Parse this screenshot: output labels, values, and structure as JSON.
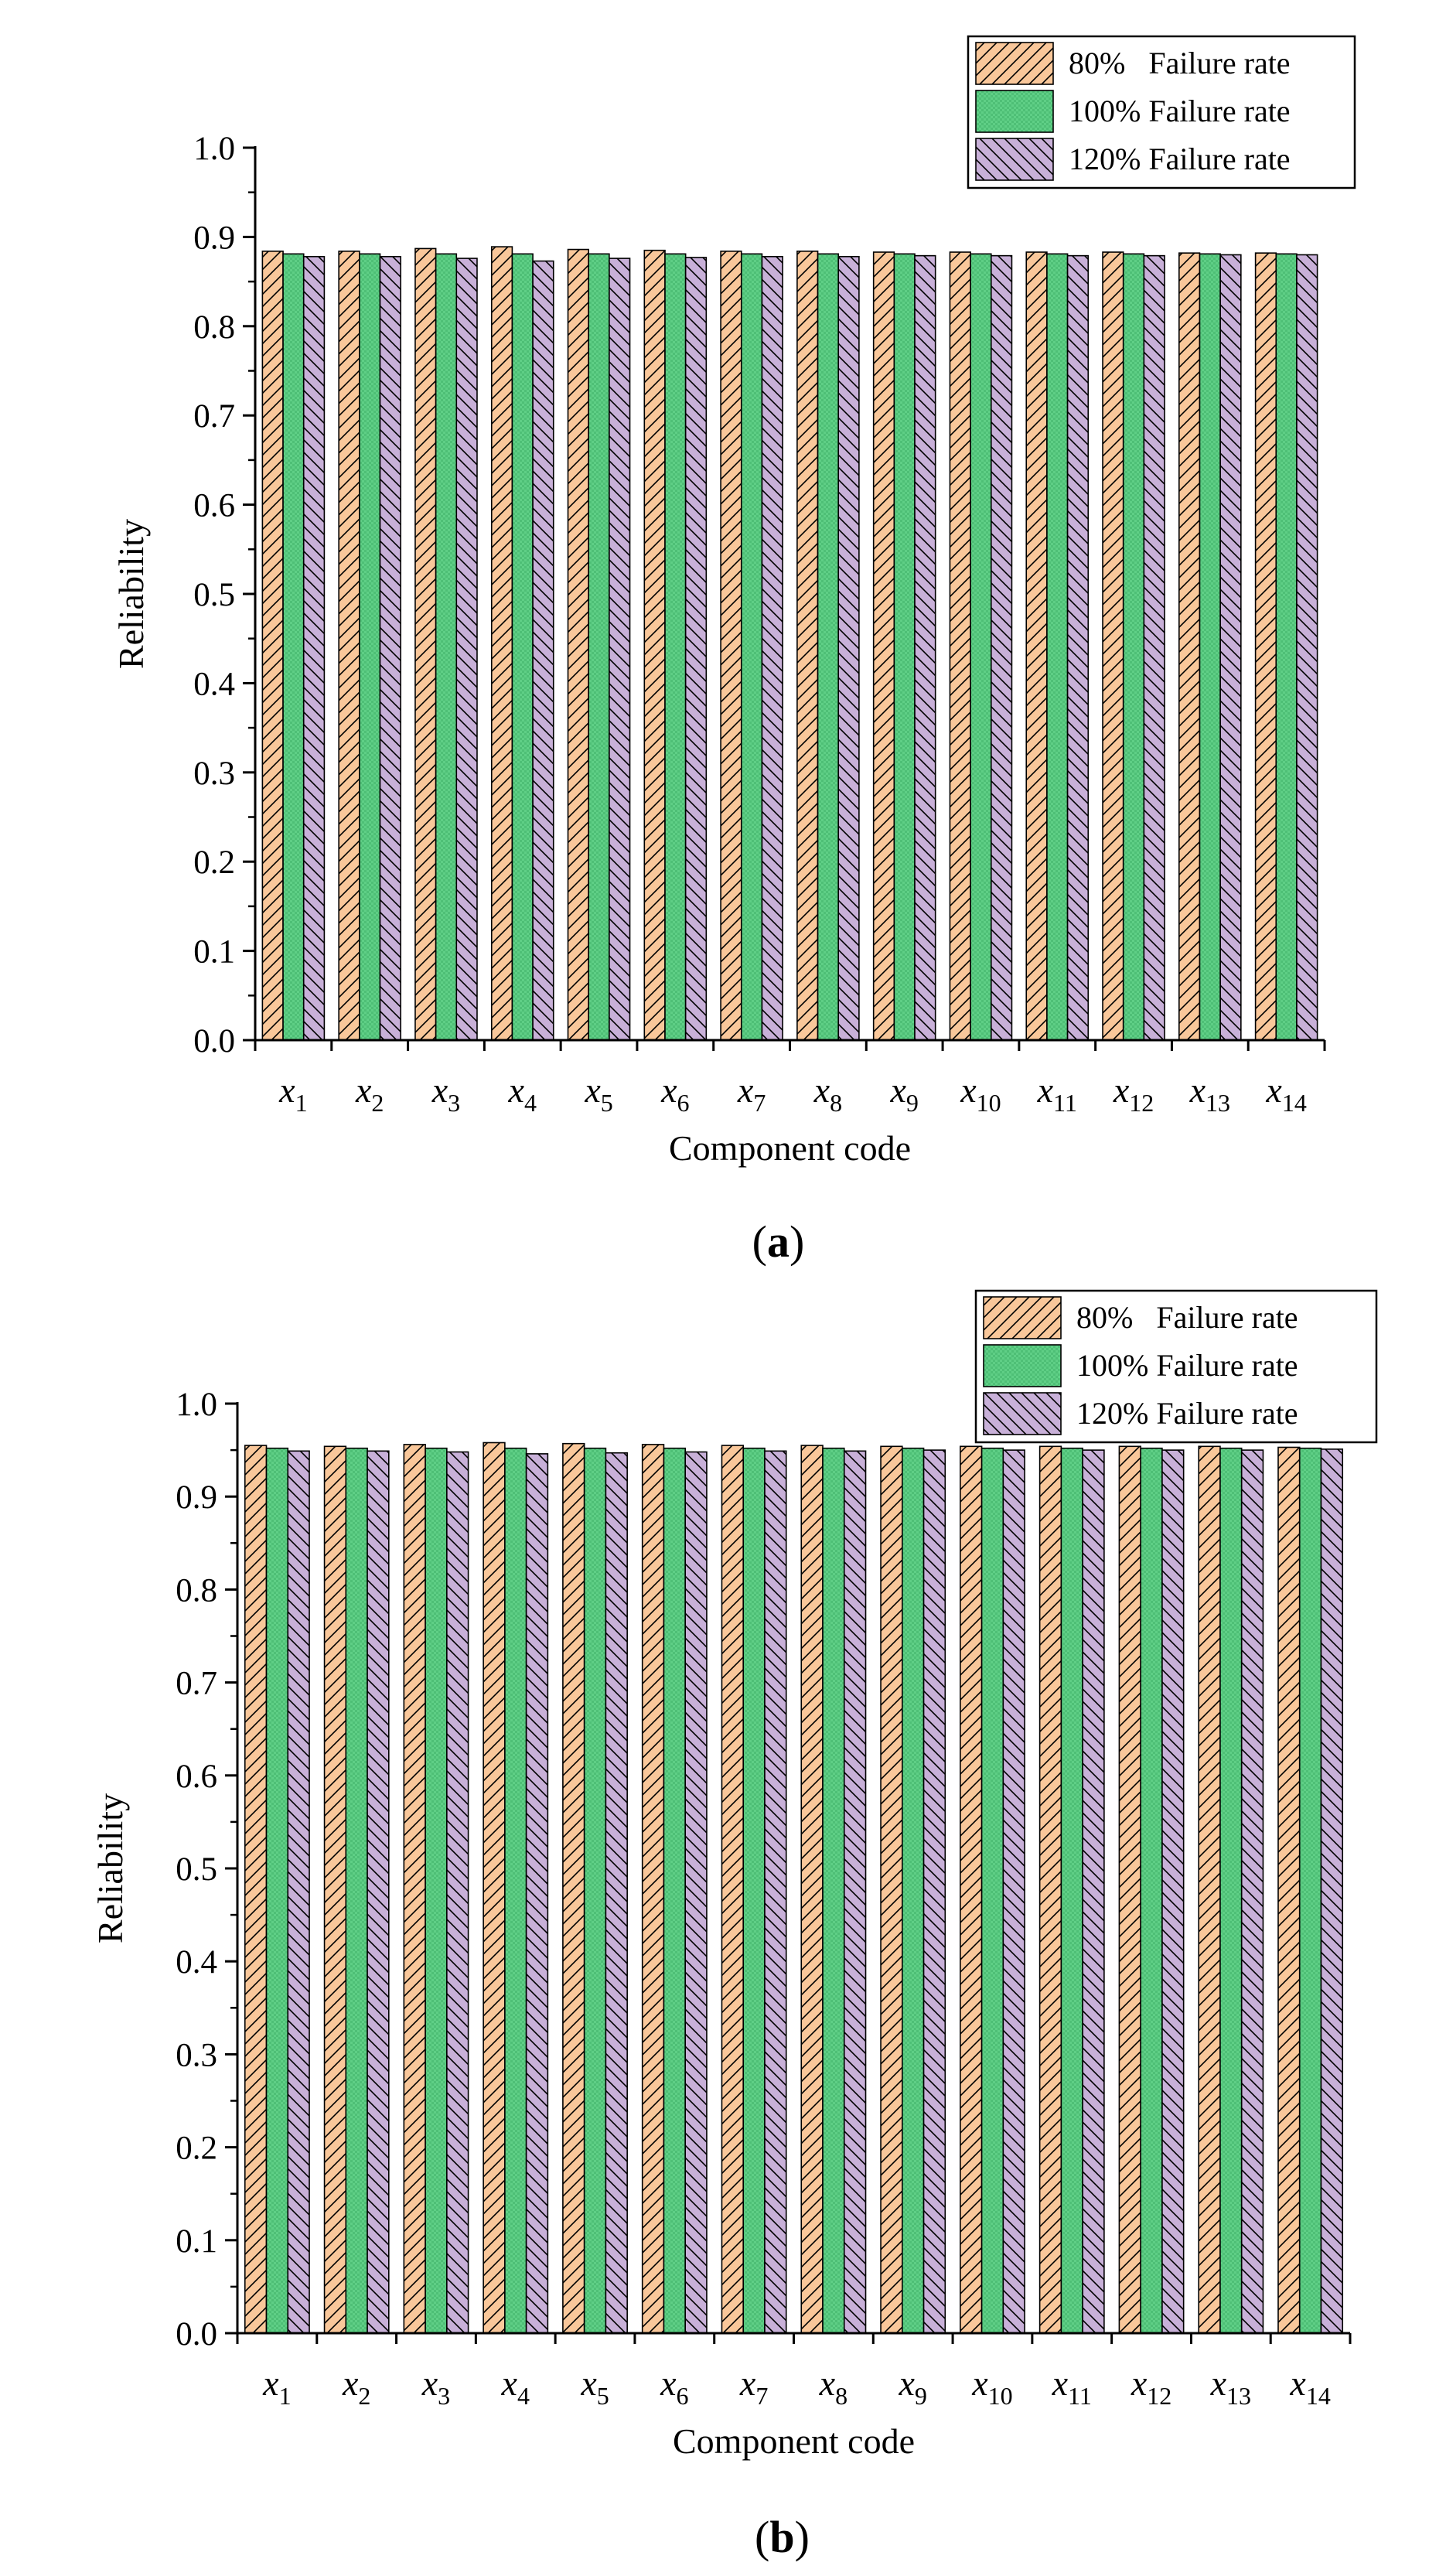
{
  "chart_data": [
    {
      "type": "bar",
      "panel_label": "a",
      "title": "",
      "xlabel": "Component code",
      "ylabel": "Reliability",
      "ylim": [
        0.0,
        1.0
      ],
      "yticks": [
        "0.0",
        "0.1",
        "0.2",
        "0.3",
        "0.4",
        "0.5",
        "0.6",
        "0.7",
        "0.8",
        "0.9",
        "1.0"
      ],
      "categories": [
        {
          "var": "x",
          "sub": "1"
        },
        {
          "var": "x",
          "sub": "2"
        },
        {
          "var": "x",
          "sub": "3"
        },
        {
          "var": "x",
          "sub": "4"
        },
        {
          "var": "x",
          "sub": "5"
        },
        {
          "var": "x",
          "sub": "6"
        },
        {
          "var": "x",
          "sub": "7"
        },
        {
          "var": "x",
          "sub": "8"
        },
        {
          "var": "x",
          "sub": "9"
        },
        {
          "var": "x",
          "sub": "10"
        },
        {
          "var": "x",
          "sub": "11"
        },
        {
          "var": "x",
          "sub": "12"
        },
        {
          "var": "x",
          "sub": "13"
        },
        {
          "var": "x",
          "sub": "14"
        }
      ],
      "legend_position": "top-right",
      "series": [
        {
          "name": "80%   Failure rate",
          "values": [
            0.884,
            0.884,
            0.887,
            0.889,
            0.886,
            0.885,
            0.884,
            0.884,
            0.883,
            0.883,
            0.883,
            0.883,
            0.882,
            0.882
          ]
        },
        {
          "name": "100% Failure rate",
          "values": [
            0.881,
            0.881,
            0.881,
            0.881,
            0.881,
            0.881,
            0.881,
            0.881,
            0.881,
            0.881,
            0.881,
            0.881,
            0.881,
            0.881
          ]
        },
        {
          "name": "120% Failure rate",
          "values": [
            0.878,
            0.878,
            0.876,
            0.873,
            0.876,
            0.877,
            0.878,
            0.878,
            0.879,
            0.879,
            0.879,
            0.879,
            0.88,
            0.88
          ]
        }
      ]
    },
    {
      "type": "bar",
      "panel_label": "b",
      "title": "",
      "xlabel": "Component code",
      "ylabel": "Reliability",
      "ylim": [
        0.0,
        1.0
      ],
      "yticks": [
        "0.0",
        "0.1",
        "0.2",
        "0.3",
        "0.4",
        "0.5",
        "0.6",
        "0.7",
        "0.8",
        "0.9",
        "1.0"
      ],
      "categories": [
        {
          "var": "x",
          "sub": "1"
        },
        {
          "var": "x",
          "sub": "2"
        },
        {
          "var": "x",
          "sub": "3"
        },
        {
          "var": "x",
          "sub": "4"
        },
        {
          "var": "x",
          "sub": "5"
        },
        {
          "var": "x",
          "sub": "6"
        },
        {
          "var": "x",
          "sub": "7"
        },
        {
          "var": "x",
          "sub": "8"
        },
        {
          "var": "x",
          "sub": "9"
        },
        {
          "var": "x",
          "sub": "10"
        },
        {
          "var": "x",
          "sub": "11"
        },
        {
          "var": "x",
          "sub": "12"
        },
        {
          "var": "x",
          "sub": "13"
        },
        {
          "var": "x",
          "sub": "14"
        }
      ],
      "legend_position": "top-right",
      "series": [
        {
          "name": "80%   Failure rate",
          "values": [
            0.955,
            0.954,
            0.956,
            0.958,
            0.957,
            0.956,
            0.955,
            0.955,
            0.954,
            0.954,
            0.954,
            0.954,
            0.954,
            0.953
          ]
        },
        {
          "name": "100% Failure rate",
          "values": [
            0.952,
            0.952,
            0.952,
            0.952,
            0.952,
            0.952,
            0.952,
            0.952,
            0.952,
            0.952,
            0.952,
            0.952,
            0.952,
            0.952
          ]
        },
        {
          "name": "120% Failure rate",
          "values": [
            0.949,
            0.949,
            0.948,
            0.946,
            0.947,
            0.948,
            0.949,
            0.949,
            0.95,
            0.95,
            0.95,
            0.95,
            0.95,
            0.951
          ]
        }
      ]
    }
  ],
  "colors": {
    "series_fill": [
      "#f9c79a",
      "#5fcf86",
      "#c8b0d8"
    ],
    "axis": "#000000",
    "background": "#ffffff"
  }
}
